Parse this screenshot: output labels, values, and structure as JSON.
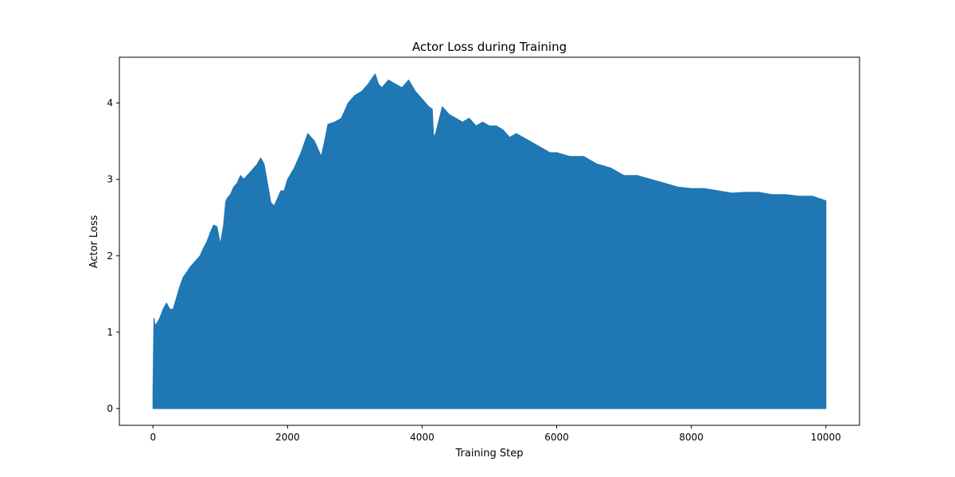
{
  "chart_data": {
    "type": "area",
    "title": "Actor Loss during Training",
    "xlabel": "Training Step",
    "ylabel": "Actor Loss",
    "xlim": [
      -500,
      10500
    ],
    "ylim": [
      -0.22,
      4.6
    ],
    "xticks": [
      0,
      2000,
      4000,
      6000,
      8000,
      10000
    ],
    "yticks": [
      0,
      1,
      2,
      3,
      4
    ],
    "grid": false,
    "legend": null,
    "color": "#1f77b4",
    "series": [
      {
        "baseline": 0,
        "x": [
          0,
          15,
          30,
          60,
          100,
          150,
          200,
          250,
          300,
          350,
          400,
          450,
          500,
          550,
          600,
          650,
          700,
          750,
          800,
          850,
          900,
          950,
          1000,
          1050,
          1080,
          1100,
          1150,
          1200,
          1250,
          1300,
          1350,
          1400,
          1450,
          1500,
          1550,
          1600,
          1650,
          1700,
          1750,
          1800,
          1850,
          1900,
          1950,
          2000,
          2100,
          2200,
          2300,
          2400,
          2500,
          2550,
          2600,
          2700,
          2800,
          2900,
          3000,
          3100,
          3200,
          3300,
          3350,
          3400,
          3500,
          3600,
          3700,
          3800,
          3900,
          4000,
          4100,
          4150,
          4170,
          4200,
          4300,
          4400,
          4500,
          4600,
          4700,
          4800,
          4900,
          5000,
          5100,
          5200,
          5300,
          5400,
          5500,
          5600,
          5700,
          5800,
          5900,
          6000,
          6200,
          6400,
          6600,
          6800,
          7000,
          7200,
          7400,
          7600,
          7800,
          8000,
          8200,
          8400,
          8600,
          8800,
          9000,
          9200,
          9400,
          9600,
          9800,
          10000
        ],
        "y": [
          0.22,
          1.18,
          1.08,
          1.12,
          1.18,
          1.3,
          1.38,
          1.3,
          1.3,
          1.45,
          1.6,
          1.72,
          1.78,
          1.85,
          1.9,
          1.95,
          2.0,
          2.1,
          2.18,
          2.3,
          2.4,
          2.38,
          2.15,
          2.4,
          2.7,
          2.75,
          2.8,
          2.9,
          2.95,
          3.05,
          3.0,
          3.05,
          3.1,
          3.15,
          3.2,
          3.28,
          3.2,
          2.95,
          2.7,
          2.65,
          2.75,
          2.85,
          2.85,
          3.0,
          3.15,
          3.35,
          3.6,
          3.5,
          3.3,
          3.5,
          3.72,
          3.75,
          3.8,
          4.0,
          4.1,
          4.15,
          4.25,
          4.38,
          4.25,
          4.2,
          4.3,
          4.25,
          4.2,
          4.3,
          4.15,
          4.05,
          3.95,
          3.92,
          3.55,
          3.6,
          3.95,
          3.85,
          3.8,
          3.75,
          3.8,
          3.7,
          3.75,
          3.7,
          3.7,
          3.65,
          3.55,
          3.6,
          3.55,
          3.5,
          3.45,
          3.4,
          3.35,
          3.35,
          3.3,
          3.3,
          3.2,
          3.15,
          3.05,
          3.05,
          3.0,
          2.95,
          2.9,
          2.88,
          2.88,
          2.85,
          2.82,
          2.83,
          2.83,
          2.8,
          2.8,
          2.78,
          2.78,
          2.72
        ]
      }
    ]
  }
}
